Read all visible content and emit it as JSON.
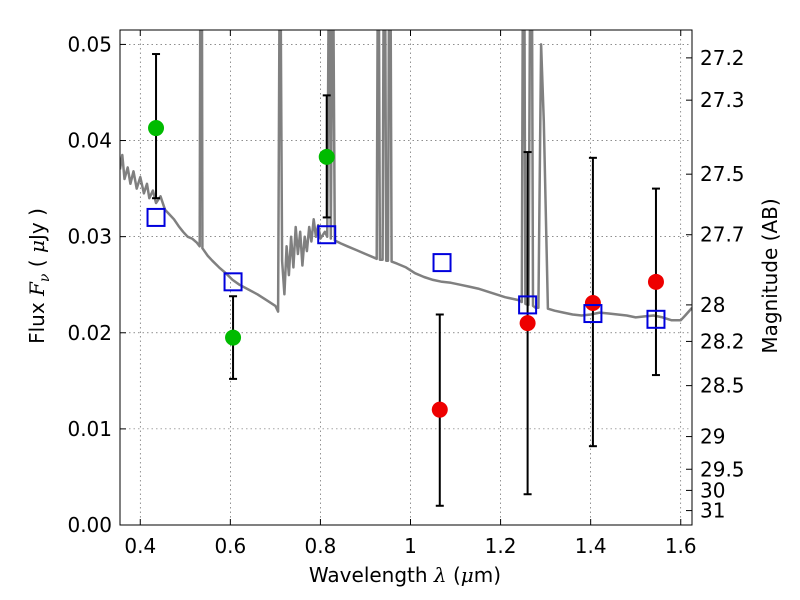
{
  "chart_data": {
    "type": "scatter",
    "xlabel": "Wavelength  λ (μm)",
    "ylabel": "Flux  F_ν  ( μJy )",
    "ylabel_right": "Magnitude (AB)",
    "xlim": [
      0.355,
      1.625
    ],
    "ylim": [
      0.0,
      0.0515
    ],
    "grid": true,
    "x_ticks": [
      0.4,
      0.6,
      0.8,
      1.0,
      1.2,
      1.4,
      1.6
    ],
    "x_tick_labels": [
      "0.4",
      "0.6",
      "0.8",
      "1",
      "1.2",
      "1.4",
      "1.6"
    ],
    "y_ticks": [
      0.0,
      0.01,
      0.02,
      0.03,
      0.04,
      0.05
    ],
    "y_tick_labels": [
      "0.00",
      "0.01",
      "0.02",
      "0.03",
      "0.04",
      "0.05"
    ],
    "right_ticks": [
      {
        "label": "27.2",
        "flux": 0.0486
      },
      {
        "label": "27.3",
        "flux": 0.0442
      },
      {
        "label": "27.5",
        "flux": 0.0365
      },
      {
        "label": "27.7",
        "flux": 0.0302
      },
      {
        "label": "28",
        "flux": 0.0229
      },
      {
        "label": "28.2",
        "flux": 0.0191
      },
      {
        "label": "28.5",
        "flux": 0.0145
      },
      {
        "label": "29",
        "flux": 0.0092
      },
      {
        "label": "29.5",
        "flux": 0.0058
      },
      {
        "label": "30",
        "flux": 0.0036
      },
      {
        "label": "31",
        "flux": 0.0015
      }
    ],
    "series": [
      {
        "marker": "circle",
        "color": "#00bb00",
        "points": [
          {
            "x": 0.435,
            "y": 0.0413,
            "ylo": 0.034,
            "yhi": 0.049
          },
          {
            "x": 0.606,
            "y": 0.0195,
            "ylo": 0.0152,
            "yhi": 0.0238
          },
          {
            "x": 0.814,
            "y": 0.0383,
            "ylo": 0.032,
            "yhi": 0.0447
          }
        ]
      },
      {
        "marker": "circle",
        "color": "#ee0000",
        "points": [
          {
            "x": 1.065,
            "y": 0.012,
            "ylo": 0.002,
            "yhi": 0.0219
          },
          {
            "x": 1.26,
            "y": 0.021,
            "ylo": 0.0032,
            "yhi": 0.0388
          },
          {
            "x": 1.405,
            "y": 0.0231,
            "ylo": 0.0082,
            "yhi": 0.0382
          },
          {
            "x": 1.545,
            "y": 0.0253,
            "ylo": 0.0156,
            "yhi": 0.035
          }
        ]
      },
      {
        "marker": "square-open",
        "color": "#0000dd",
        "points": [
          {
            "x": 0.435,
            "y": 0.032
          },
          {
            "x": 0.606,
            "y": 0.0253
          },
          {
            "x": 0.814,
            "y": 0.0302
          },
          {
            "x": 1.07,
            "y": 0.0273
          },
          {
            "x": 1.26,
            "y": 0.0229
          },
          {
            "x": 1.405,
            "y": 0.022
          },
          {
            "x": 1.545,
            "y": 0.0214
          }
        ]
      },
      {
        "type": "line",
        "color": "#808080",
        "points": [
          [
            0.355,
            0.037
          ],
          [
            0.36,
            0.0385
          ],
          [
            0.365,
            0.036
          ],
          [
            0.372,
            0.0372
          ],
          [
            0.378,
            0.0355
          ],
          [
            0.385,
            0.0368
          ],
          [
            0.392,
            0.035
          ],
          [
            0.4,
            0.0362
          ],
          [
            0.408,
            0.0345
          ],
          [
            0.415,
            0.0355
          ],
          [
            0.42,
            0.034
          ],
          [
            0.428,
            0.0348
          ],
          [
            0.435,
            0.0335
          ],
          [
            0.445,
            0.0342
          ],
          [
            0.455,
            0.0328
          ],
          [
            0.465,
            0.0323
          ],
          [
            0.475,
            0.0318
          ],
          [
            0.485,
            0.0311
          ],
          [
            0.495,
            0.0305
          ],
          [
            0.505,
            0.03
          ],
          [
            0.515,
            0.0298
          ],
          [
            0.525,
            0.0294
          ],
          [
            0.532,
            0.029
          ],
          [
            0.533,
            0.052
          ],
          [
            0.537,
            0.052
          ],
          [
            0.538,
            0.0288
          ],
          [
            0.55,
            0.028
          ],
          [
            0.56,
            0.0275
          ],
          [
            0.575,
            0.0268
          ],
          [
            0.59,
            0.0262
          ],
          [
            0.605,
            0.0255
          ],
          [
            0.62,
            0.025
          ],
          [
            0.64,
            0.0245
          ],
          [
            0.66,
            0.024
          ],
          [
            0.68,
            0.0234
          ],
          [
            0.7,
            0.0228
          ],
          [
            0.706,
            0.0222
          ],
          [
            0.709,
            0.052
          ],
          [
            0.712,
            0.052
          ],
          [
            0.715,
            0.0275
          ],
          [
            0.72,
            0.024
          ],
          [
            0.725,
            0.029
          ],
          [
            0.73,
            0.026
          ],
          [
            0.735,
            0.03
          ],
          [
            0.74,
            0.0268
          ],
          [
            0.745,
            0.031
          ],
          [
            0.75,
            0.0282
          ],
          [
            0.755,
            0.0305
          ],
          [
            0.76,
            0.027
          ],
          [
            0.765,
            0.03
          ],
          [
            0.77,
            0.0285
          ],
          [
            0.775,
            0.031
          ],
          [
            0.78,
            0.0295
          ],
          [
            0.785,
            0.0318
          ],
          [
            0.79,
            0.03
          ],
          [
            0.795,
            0.0312
          ],
          [
            0.8,
            0.0298
          ],
          [
            0.81,
            0.0305
          ],
          [
            0.815,
            0.03
          ],
          [
            0.818,
            0.052
          ],
          [
            0.821,
            0.052
          ],
          [
            0.823,
            0.0298
          ],
          [
            0.826,
            0.052
          ],
          [
            0.829,
            0.052
          ],
          [
            0.832,
            0.0296
          ],
          [
            0.845,
            0.0293
          ],
          [
            0.86,
            0.029
          ],
          [
            0.88,
            0.0286
          ],
          [
            0.9,
            0.0282
          ],
          [
            0.92,
            0.0278
          ],
          [
            0.925,
            0.0277
          ],
          [
            0.927,
            0.052
          ],
          [
            0.93,
            0.052
          ],
          [
            0.932,
            0.0276
          ],
          [
            0.938,
            0.0276
          ],
          [
            0.94,
            0.052
          ],
          [
            0.944,
            0.052
          ],
          [
            0.946,
            0.0275
          ],
          [
            0.95,
            0.0275
          ],
          [
            0.952,
            0.052
          ],
          [
            0.956,
            0.052
          ],
          [
            0.958,
            0.0274
          ],
          [
            0.97,
            0.0272
          ],
          [
            0.99,
            0.0268
          ],
          [
            1.01,
            0.0262
          ],
          [
            1.03,
            0.0258
          ],
          [
            1.05,
            0.0255
          ],
          [
            1.07,
            0.0253
          ],
          [
            1.09,
            0.0252
          ],
          [
            1.11,
            0.025
          ],
          [
            1.13,
            0.0248
          ],
          [
            1.15,
            0.0246
          ],
          [
            1.17,
            0.0243
          ],
          [
            1.19,
            0.024
          ],
          [
            1.21,
            0.0237
          ],
          [
            1.24,
            0.0234
          ],
          [
            1.247,
            0.0232
          ],
          [
            1.249,
            0.052
          ],
          [
            1.253,
            0.052
          ],
          [
            1.255,
            0.023
          ],
          [
            1.262,
            0.0229
          ],
          [
            1.265,
            0.052
          ],
          [
            1.27,
            0.052
          ],
          [
            1.272,
            0.0228
          ],
          [
            1.278,
            0.0226
          ],
          [
            1.284,
            0.0226
          ],
          [
            1.29,
            0.05
          ],
          [
            1.296,
            0.042
          ],
          [
            1.305,
            0.0225
          ],
          [
            1.32,
            0.0223
          ],
          [
            1.34,
            0.0221
          ],
          [
            1.36,
            0.0219
          ],
          [
            1.38,
            0.0218
          ],
          [
            1.4,
            0.0219
          ],
          [
            1.42,
            0.0221
          ],
          [
            1.44,
            0.022
          ],
          [
            1.46,
            0.0219
          ],
          [
            1.48,
            0.0218
          ],
          [
            1.5,
            0.0216
          ],
          [
            1.52,
            0.0217
          ],
          [
            1.54,
            0.0218
          ],
          [
            1.56,
            0.0216
          ],
          [
            1.58,
            0.0213
          ],
          [
            1.6,
            0.0213
          ],
          [
            1.61,
            0.0218
          ],
          [
            1.625,
            0.0226
          ]
        ]
      }
    ]
  }
}
